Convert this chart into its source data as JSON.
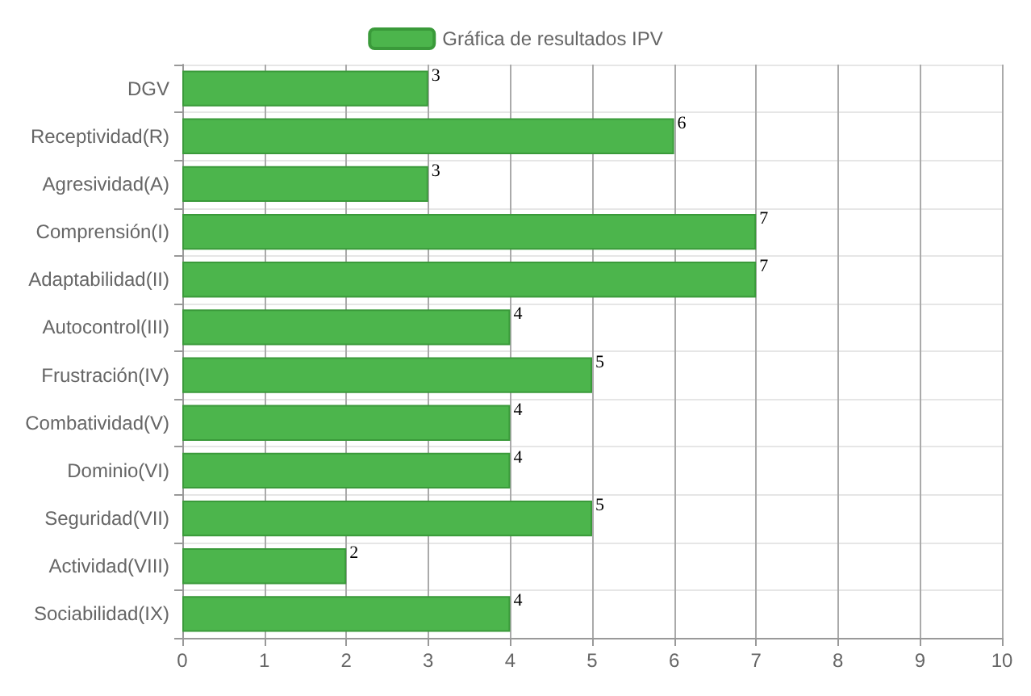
{
  "chart_data": {
    "type": "bar",
    "orientation": "horizontal",
    "categories": [
      "DGV",
      "Receptividad(R)",
      "Agresividad(A)",
      "Comprensión(I)",
      "Adaptabilidad(II)",
      "Autocontrol(III)",
      "Frustración(IV)",
      "Combatividad(V)",
      "Dominio(VI)",
      "Seguridad(VII)",
      "Actividad(VIII)",
      "Sociabilidad(IX)"
    ],
    "series": [
      {
        "name": "Gráfica de resultados IPV",
        "color": "#4cb54c",
        "values": [
          3,
          6,
          3,
          7,
          7,
          4,
          5,
          4,
          4,
          5,
          2,
          4
        ]
      }
    ],
    "xlim": [
      0,
      10
    ],
    "xticks": [
      0,
      1,
      2,
      3,
      4,
      5,
      6,
      7,
      8,
      9,
      10
    ],
    "grid": true,
    "legend": "top",
    "data_labels": true
  }
}
